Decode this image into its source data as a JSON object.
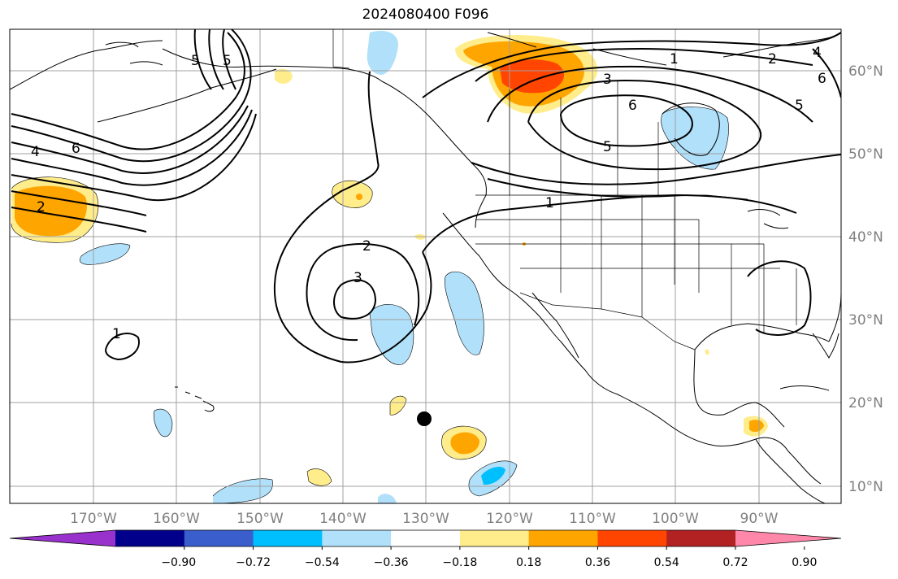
{
  "title": "2024080400 F096",
  "map": {
    "lon_labels": [
      "170°W",
      "160°W",
      "150°W",
      "140°W",
      "130°W",
      "120°W",
      "110°W",
      "100°W",
      "90°W"
    ],
    "lat_labels": [
      "60°N",
      "50°N",
      "40°N",
      "30°N",
      "20°N",
      "10°N"
    ],
    "contour_labels": [
      "1",
      "3",
      "5",
      "6",
      "2",
      "4",
      "5",
      "6",
      "5",
      "1",
      "2",
      "3",
      "1",
      "6",
      "4",
      "2",
      "5"
    ],
    "marker": "black-dot"
  },
  "colorbar": {
    "colors": [
      "#9932cc",
      "#00008b",
      "#3a5fcd",
      "#00bfff",
      "#b0e0fa",
      "#ffffff",
      "#ffec8b",
      "#ffa500",
      "#ff4500",
      "#b22222",
      "#ff88aa"
    ],
    "tick_labels": [
      "−0.90",
      "−0.72",
      "−0.54",
      "−0.36",
      "−0.18",
      "0.18",
      "0.36",
      "0.54",
      "0.72",
      "0.90"
    ]
  },
  "shading_colors": {
    "light_blue": "#b0e0fa",
    "blue": "#00bfff",
    "yellow": "#ffec8b",
    "orange": "#ffa500",
    "red_orange": "#ff4500"
  }
}
